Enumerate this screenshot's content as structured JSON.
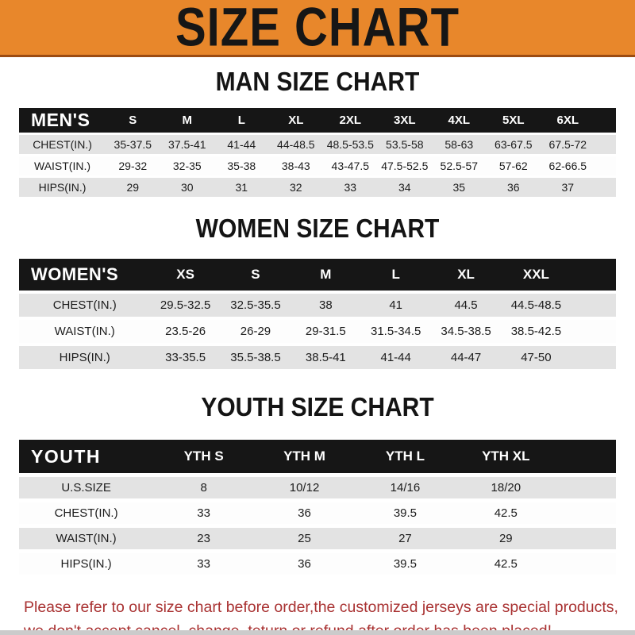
{
  "banner": {
    "title": "SIZE CHART"
  },
  "colors": {
    "banner_background": "#e8872b",
    "banner_underline": "#9c4c12",
    "table_header_background": "#161616",
    "table_header_text": "#ffffff",
    "row_stripe": "#e3e3e3",
    "footer_text": "#a93232",
    "bottom_bar": "#cbcbcb"
  },
  "men": {
    "heading": "MAN SIZE CHART",
    "label": "MEN'S",
    "columns": [
      "S",
      "M",
      "L",
      "XL",
      "2XL",
      "3XL",
      "4XL",
      "5XL",
      "6XL"
    ],
    "rows": [
      {
        "label": "CHEST(IN.)",
        "values": [
          "35-37.5",
          "37.5-41",
          "41-44",
          "44-48.5",
          "48.5-53.5",
          "53.5-58",
          "58-63",
          "63-67.5",
          "67.5-72"
        ]
      },
      {
        "label": "WAIST(IN.)",
        "values": [
          "29-32",
          "32-35",
          "35-38",
          "38-43",
          "43-47.5",
          "47.5-52.5",
          "52.5-57",
          "57-62",
          "62-66.5"
        ]
      },
      {
        "label": "HIPS(IN.)",
        "values": [
          "29",
          "30",
          "31",
          "32",
          "33",
          "34",
          "35",
          "36",
          "37"
        ]
      }
    ]
  },
  "women": {
    "heading": "WOMEN SIZE CHART",
    "label": "WOMEN'S",
    "columns": [
      "XS",
      "S",
      "M",
      "L",
      "XL",
      "XXL"
    ],
    "rows": [
      {
        "label": "CHEST(IN.)",
        "values": [
          "29.5-32.5",
          "32.5-35.5",
          "38",
          "41",
          "44.5",
          "44.5-48.5"
        ]
      },
      {
        "label": "WAIST(IN.)",
        "values": [
          "23.5-26",
          "26-29",
          "29-31.5",
          "31.5-34.5",
          "34.5-38.5",
          "38.5-42.5"
        ]
      },
      {
        "label": "HIPS(IN.)",
        "values": [
          "33-35.5",
          "35.5-38.5",
          "38.5-41",
          "41-44",
          "44-47",
          "47-50"
        ]
      }
    ]
  },
  "youth": {
    "heading": "YOUTH SIZE CHART",
    "label": "YOUTH",
    "columns": [
      "YTH S",
      "YTH M",
      "YTH L",
      "YTH XL"
    ],
    "rows": [
      {
        "label": "U.S.SIZE",
        "values": [
          "8",
          "10/12",
          "14/16",
          "18/20"
        ]
      },
      {
        "label": "CHEST(IN.)",
        "values": [
          "33",
          "36",
          "39.5",
          "42.5"
        ]
      },
      {
        "label": "WAIST(IN.)",
        "values": [
          "23",
          "25",
          "27",
          "29"
        ]
      },
      {
        "label": "HIPS(IN.)",
        "values": [
          "33",
          "36",
          "39.5",
          "42.5"
        ]
      }
    ]
  },
  "footer": {
    "line1": "Please refer to our size chart before order,the customized jerseys are special products,",
    "line2": "we don't accept cancel, change, teturn or refund after order has been placed!"
  }
}
